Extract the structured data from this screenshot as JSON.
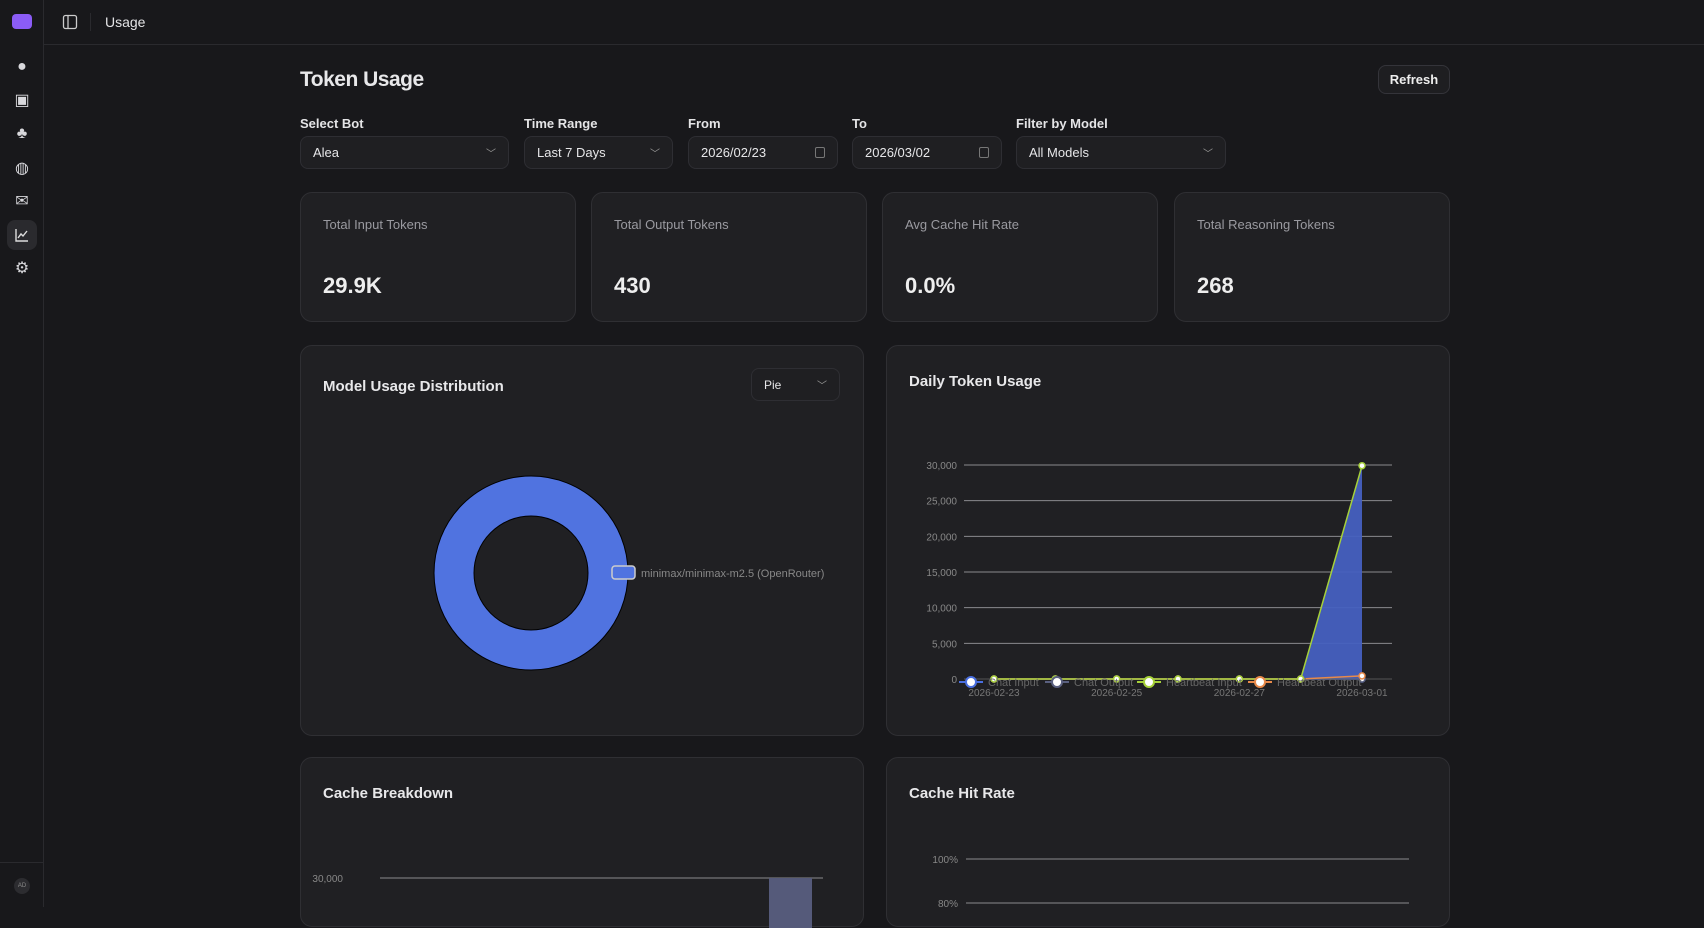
{
  "topbar": {
    "breadcrumb": "Usage"
  },
  "sidebar": {
    "items": [
      {
        "icon": "chat-icon"
      },
      {
        "icon": "bot-icon"
      },
      {
        "icon": "skills-icon"
      },
      {
        "icon": "globe-icon"
      },
      {
        "icon": "mail-icon"
      },
      {
        "icon": "chart-icon",
        "active": true
      },
      {
        "icon": "gear-icon"
      }
    ],
    "avatar": "AD"
  },
  "page": {
    "title": "Token Usage",
    "refresh_label": "Refresh"
  },
  "filters": {
    "bot": {
      "label": "Select Bot",
      "value": "Alea"
    },
    "time_range": {
      "label": "Time Range",
      "value": "Last 7 Days"
    },
    "from": {
      "label": "From",
      "value": "2026/02/23"
    },
    "to": {
      "label": "To",
      "value": "2026/03/02"
    },
    "model": {
      "label": "Filter by Model",
      "value": "All Models"
    }
  },
  "stats": [
    {
      "label": "Total Input Tokens",
      "value": "29.9K"
    },
    {
      "label": "Total Output Tokens",
      "value": "430"
    },
    {
      "label": "Avg Cache Hit Rate",
      "value": "0.0%"
    },
    {
      "label": "Total Reasoning Tokens",
      "value": "268"
    }
  ],
  "cards": {
    "model_dist": "Model Usage Distribution",
    "chart_type": "Pie",
    "daily": "Daily Token Usage",
    "cache_breakdown": "Cache Breakdown",
    "cache_hit": "Cache Hit Rate"
  },
  "chart_data": [
    {
      "type": "pie",
      "variant": "donut",
      "slices": [
        {
          "label": "minimax/minimax-m2.5 (OpenRouter)",
          "value": 100,
          "color": "#5073e0"
        }
      ],
      "legend": "right"
    },
    {
      "type": "line",
      "x": [
        "2026-02-23",
        "2026-02-24",
        "2026-02-25",
        "2026-02-26",
        "2026-02-27",
        "2026-02-28",
        "2026-03-01"
      ],
      "x_tick_labels": [
        "2026-02-23",
        "2026-02-25",
        "2026-02-27",
        "2026-03-01"
      ],
      "ylim": [
        0,
        30000
      ],
      "y_ticks": [
        "0",
        "5,000",
        "10,000",
        "15,000",
        "20,000",
        "25,000",
        "30,000"
      ],
      "grid": true,
      "legend": "bottom",
      "series": [
        {
          "name": "Chat Input",
          "values": [
            0,
            0,
            0,
            0,
            0,
            0,
            0
          ],
          "color": "#4a6fe0"
        },
        {
          "name": "Chat Output",
          "values": [
            0,
            0,
            0,
            0,
            0,
            0,
            0
          ],
          "color": "#5a6080"
        },
        {
          "name": "Heartbeat Input",
          "values": [
            0,
            0,
            0,
            0,
            0,
            0,
            29900
          ],
          "color": "#a6d13a",
          "area_color": "#4660c0"
        },
        {
          "name": "Heartbeat Output",
          "values": [
            0,
            0,
            0,
            0,
            0,
            0,
            430
          ],
          "color": "#e88a4a"
        }
      ]
    },
    {
      "type": "bar",
      "y_ticks": [
        "30,000"
      ],
      "values_visible": [
        30000
      ],
      "color": "#555a7a"
    },
    {
      "type": "line",
      "y_ticks": [
        "100%",
        "80%"
      ]
    }
  ]
}
